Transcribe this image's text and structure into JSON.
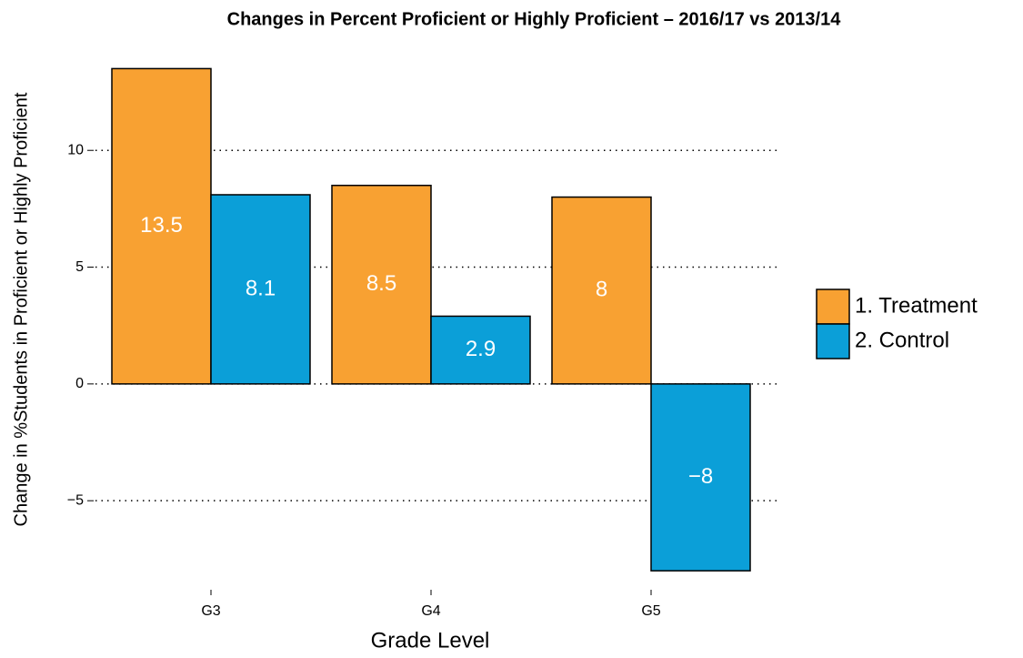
{
  "chart_data": {
    "type": "bar",
    "title": "Changes in Percent Proficient or Highly Proficient – 2016/17 vs 2013/14",
    "x_label": "Grade Level",
    "y_label": "Change in %Students in Proficient or Highly Proficient",
    "categories": [
      "G3",
      "G4",
      "G5"
    ],
    "series": [
      {
        "name": "1. Treatment",
        "color": "#f8a132",
        "values": [
          13.5,
          8.5,
          8
        ],
        "value_labels": [
          "13.5",
          "8.5",
          "8"
        ]
      },
      {
        "name": "2. Control",
        "color": "#0b9fd8",
        "values": [
          8.1,
          2.9,
          -8
        ],
        "value_labels": [
          "8.1",
          "2.9",
          "−8"
        ]
      }
    ],
    "ylim": [
      -8.5,
      14.1
    ],
    "yticks": [
      {
        "value": -5,
        "label": "−5"
      },
      0,
      5,
      10
    ],
    "grid": true,
    "legend": "right"
  }
}
